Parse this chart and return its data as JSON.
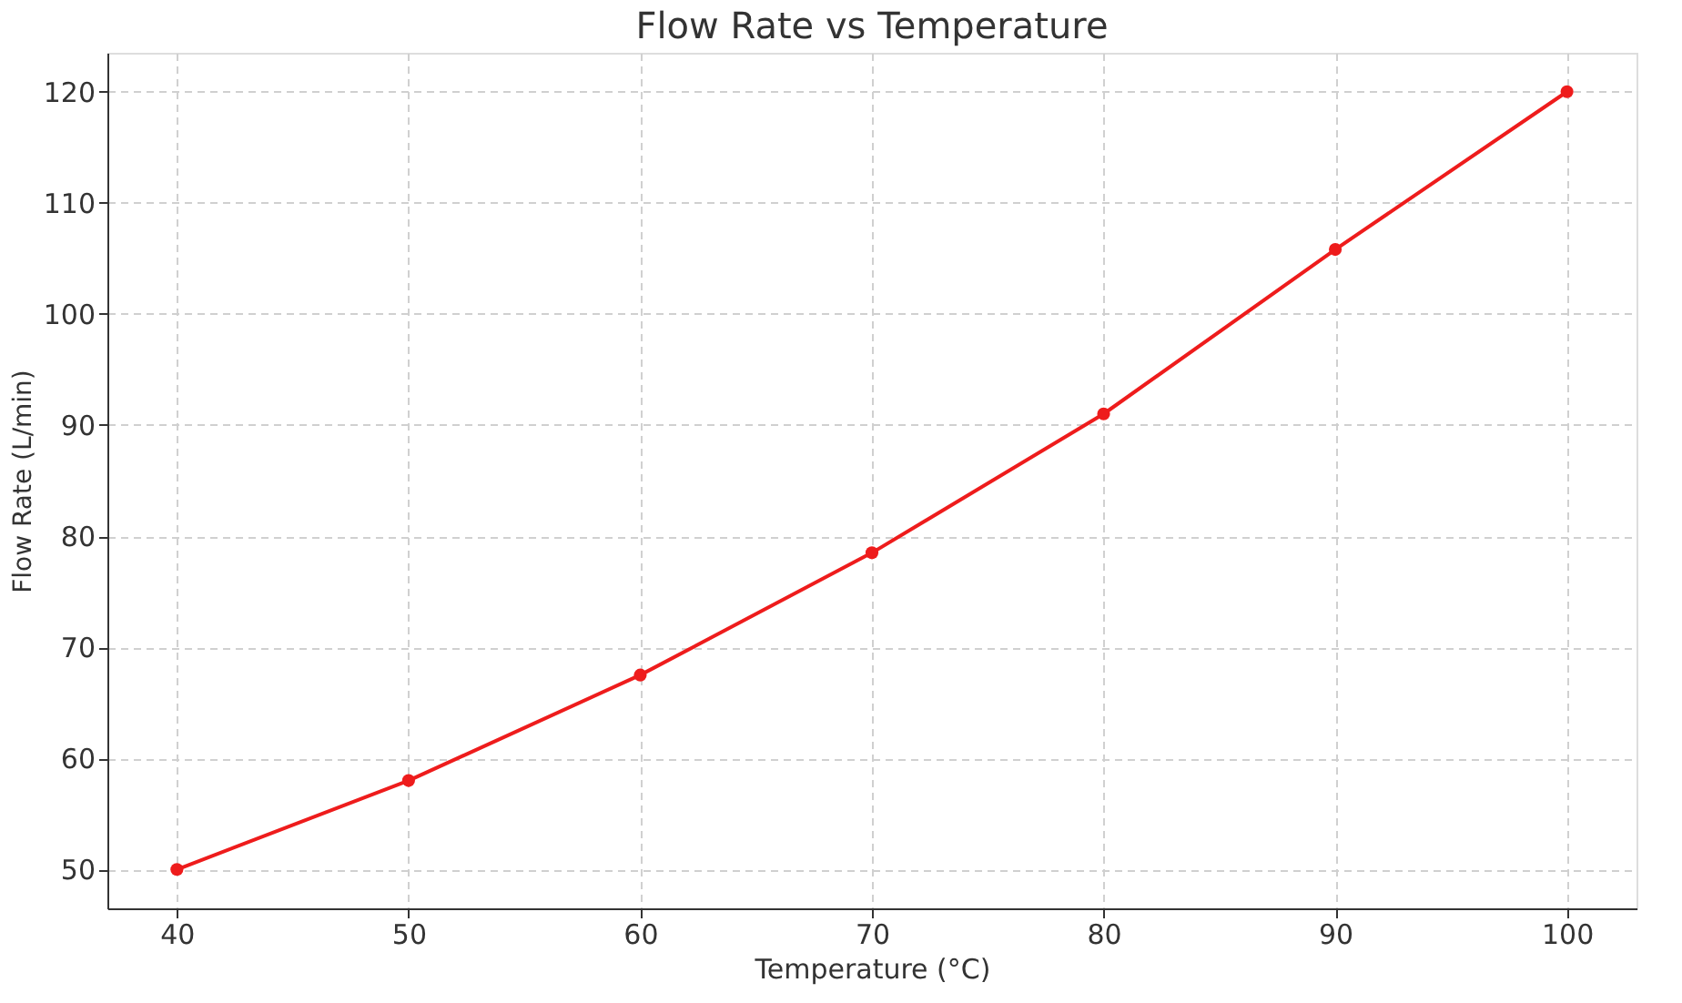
{
  "chart_data": {
    "type": "line",
    "title": "Flow Rate vs Temperature",
    "xlabel": "Temperature (°C)",
    "ylabel": "Flow Rate (L/min)",
    "x": [
      40,
      50,
      60,
      70,
      80,
      90,
      100
    ],
    "series": [
      {
        "color": "#ee1c1c",
        "values": [
          50,
          58.0,
          67.5,
          78.5,
          91.0,
          105.8,
          120
        ]
      }
    ],
    "xlim": [
      37,
      103
    ],
    "xticks": [
      40,
      50,
      60,
      70,
      80,
      90,
      100
    ],
    "ylim": [
      46.5,
      123.5
    ],
    "yticks": [
      50,
      60,
      70,
      80,
      90,
      100,
      110,
      120
    ],
    "grid": true,
    "marker": "circle",
    "line_style": "solid"
  }
}
